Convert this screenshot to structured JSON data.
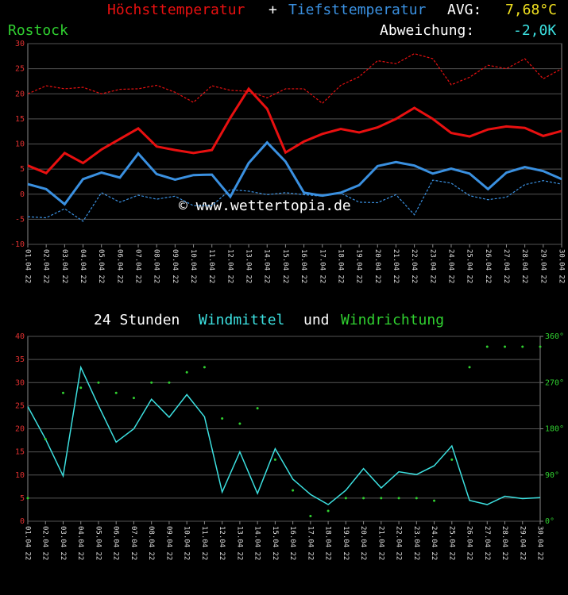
{
  "chart_data": [
    {
      "type": "line",
      "title_connector": "+",
      "avg_label": "AVG:",
      "avg_value": "7,68°C",
      "station": "Rostock",
      "deviation_label": "Abweichung:",
      "deviation_value": "-2,0K",
      "annotation": "© www.wettertopia.de",
      "categories": [
        "01.04 22",
        "02.04 22",
        "03.04 22",
        "04.04 22",
        "05.04 22",
        "06.04 22",
        "07.04 22",
        "08.04 22",
        "09.04 22",
        "10.04 22",
        "11.04 22",
        "12.04 22",
        "13.04 22",
        "14.04 22",
        "15.04 22",
        "16.04 22",
        "17.04 22",
        "18.04 22",
        "19.04 22",
        "20.04 22",
        "21.04 22",
        "22.04 22",
        "23.04 22",
        "24.04 22",
        "25.04 22",
        "26.04 22",
        "27.04 22",
        "28.04 22",
        "29.04 22",
        "30.04 22"
      ],
      "series": [
        {
          "name": "Höchsttemperatur",
          "color": "#e81010",
          "dashed": false,
          "values": [
            5.7,
            4.2,
            8.2,
            6.2,
            8.9,
            11,
            13.1,
            9.5,
            8.8,
            8.2,
            8.8,
            15.2,
            21,
            17,
            8.3,
            10.5,
            12,
            13,
            12.3,
            13.3,
            15,
            17.2,
            15,
            12.2,
            11.5,
            12.9,
            13.5,
            13.2,
            11.6,
            12.6
          ]
        },
        {
          "name": "Tiefsttemperatur",
          "color": "#3a90e0",
          "dashed": false,
          "values": [
            2,
            1,
            -2,
            3,
            4.3,
            3.3,
            8.1,
            4,
            2.9,
            3.8,
            3.9,
            -0.5,
            6.2,
            10.3,
            6.5,
            0.3,
            -0.3,
            0.3,
            1.8,
            5.6,
            6.4,
            5.7,
            4.1,
            5.1,
            4.1,
            1,
            4.3,
            5.4,
            4.6,
            3
          ]
        },
        {
          "color": "#e81010",
          "dashed": true,
          "values": [
            20,
            21.6,
            21,
            21.3,
            20,
            20.9,
            21,
            21.7,
            20.3,
            18.3,
            21.6,
            20.7,
            20.5,
            19.2,
            21,
            21,
            18.1,
            21.7,
            23.4,
            26.6,
            26,
            28,
            27,
            21.8,
            23.3,
            25.7,
            25,
            27,
            23,
            25
          ]
        },
        {
          "color": "#3a90e0",
          "dashed": true,
          "values": [
            -4.5,
            -4.7,
            -2.9,
            -5.4,
            0.3,
            -1.6,
            -0.2,
            -1,
            -0.4,
            -2.3,
            -2.3,
            0.9,
            0.6,
            -0.1,
            0.3,
            -0.1,
            -0.4,
            0.2,
            -1.6,
            -1.7,
            -0.1,
            -4.1,
            2.8,
            2.2,
            -0.3,
            -1.1,
            -0.6,
            1.9,
            2.7,
            2
          ]
        }
      ],
      "ylim": [
        -10,
        30
      ],
      "yticks": [
        -10,
        -5,
        0,
        5,
        10,
        15,
        20,
        25,
        30
      ],
      "grid": true
    },
    {
      "type": "line",
      "title_prefix": "24 Stunden",
      "title_connector": "und",
      "categories": [
        "01.04 22",
        "02.04 22",
        "03.04 22",
        "04.04 22",
        "05.04 22",
        "06.04 22",
        "07.04 22",
        "08.04 22",
        "09.04 22",
        "10.04 22",
        "11.04 22",
        "12.04 22",
        "13.04 22",
        "14.04 22",
        "15.04 22",
        "16.04 22",
        "17.04 22",
        "18.04 22",
        "19.04 22",
        "20.04 22",
        "21.04 22",
        "22.04 22",
        "23.04 22",
        "24.04 22",
        "25.04 22",
        "26.04 22",
        "27.04 22",
        "28.04 22",
        "29.04 22",
        "30.04 22"
      ],
      "series": [
        {
          "name": "Windmittel",
          "color": "#3ce0e0",
          "dashed": false,
          "values": [
            24.8,
            17.8,
            9.8,
            33.3,
            25,
            17.1,
            20,
            26.4,
            22.5,
            27.4,
            22.6,
            6.3,
            15,
            6,
            15.7,
            9.1,
            5.8,
            3.6,
            6.7,
            11.4,
            7.2,
            10.7,
            10.1,
            12,
            16.3,
            4.5,
            3.6,
            5.4,
            4.9,
            5.1
          ]
        },
        {
          "name": "Windrichtung",
          "color": "#30d030",
          "axis": "y2",
          "points": true,
          "values": [
            45,
            160,
            250,
            260,
            270,
            250,
            240,
            270,
            270,
            290,
            300,
            200,
            190,
            220,
            120,
            60,
            10,
            20,
            45,
            45,
            45,
            45,
            45,
            40,
            120,
            300,
            340,
            340,
            340,
            340
          ]
        }
      ],
      "ylim": [
        0,
        40
      ],
      "yticks": [
        0,
        5,
        10,
        15,
        20,
        25,
        30,
        35,
        40
      ],
      "y2lim": [
        0,
        360
      ],
      "y2ticks": [
        {
          "value": 0,
          "label": "0°"
        },
        {
          "value": 90,
          "label": "90°"
        },
        {
          "value": 180,
          "label": "180°"
        },
        {
          "value": 270,
          "label": "270°"
        },
        {
          "value": 360,
          "label": "360°"
        }
      ],
      "grid": true
    }
  ]
}
